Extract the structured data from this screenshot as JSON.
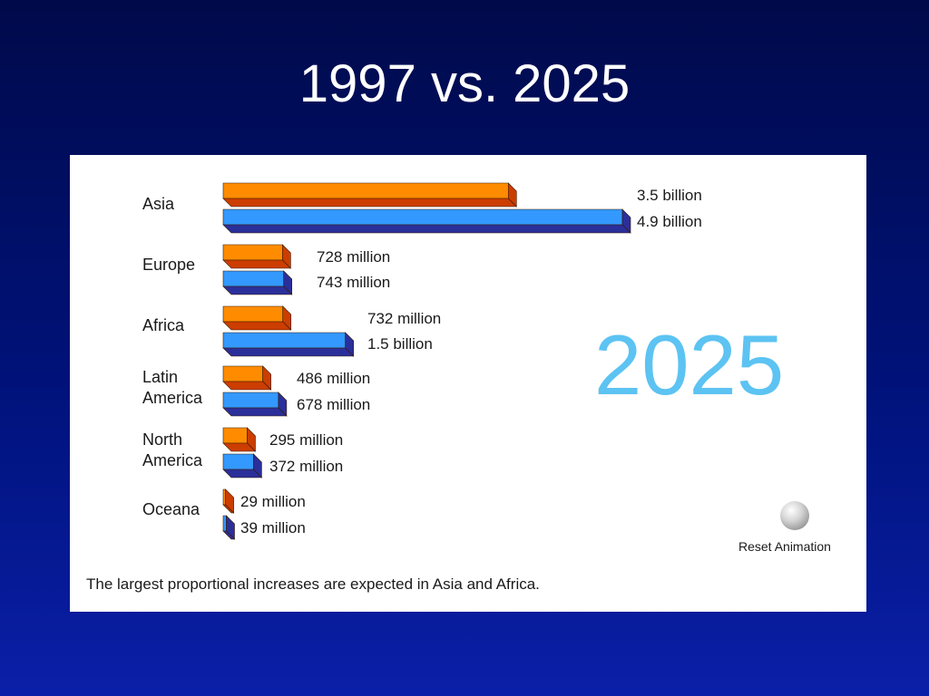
{
  "slide": {
    "title": "1997 vs. 2025"
  },
  "chart_data": {
    "type": "bar",
    "orientation": "horizontal",
    "units": "population",
    "categories": [
      "Asia",
      "Europe",
      "Africa",
      "Latin America",
      "North America",
      "Oceana"
    ],
    "series": [
      {
        "values": [
          3500000000,
          728000000,
          732000000,
          486000000,
          295000000,
          29000000
        ],
        "labels": [
          "3.5 billion",
          "728 million",
          "732 million",
          "486 million",
          "295 million",
          "29 million"
        ]
      },
      {
        "values": [
          4900000000,
          743000000,
          1500000000,
          678000000,
          372000000,
          39000000
        ],
        "labels": [
          "4.9 billion",
          "743 million",
          "1.5 billion",
          "678 million",
          "372 million",
          "39 million"
        ]
      }
    ],
    "title": "",
    "xlabel": "",
    "ylabel": "",
    "xlim": [
      0,
      4900000000
    ],
    "grid": false,
    "legend": "none",
    "colors": {
      "series_1": "#ff8c00",
      "series_1_shade": "#cc3d00",
      "series_2": "#3399ff",
      "series_2_shade": "#2a2f9a"
    }
  },
  "animation": {
    "year_display": "2025",
    "reset_label": "Reset Animation"
  },
  "footnote": "The largest proportional increases are expected in Asia and Africa."
}
